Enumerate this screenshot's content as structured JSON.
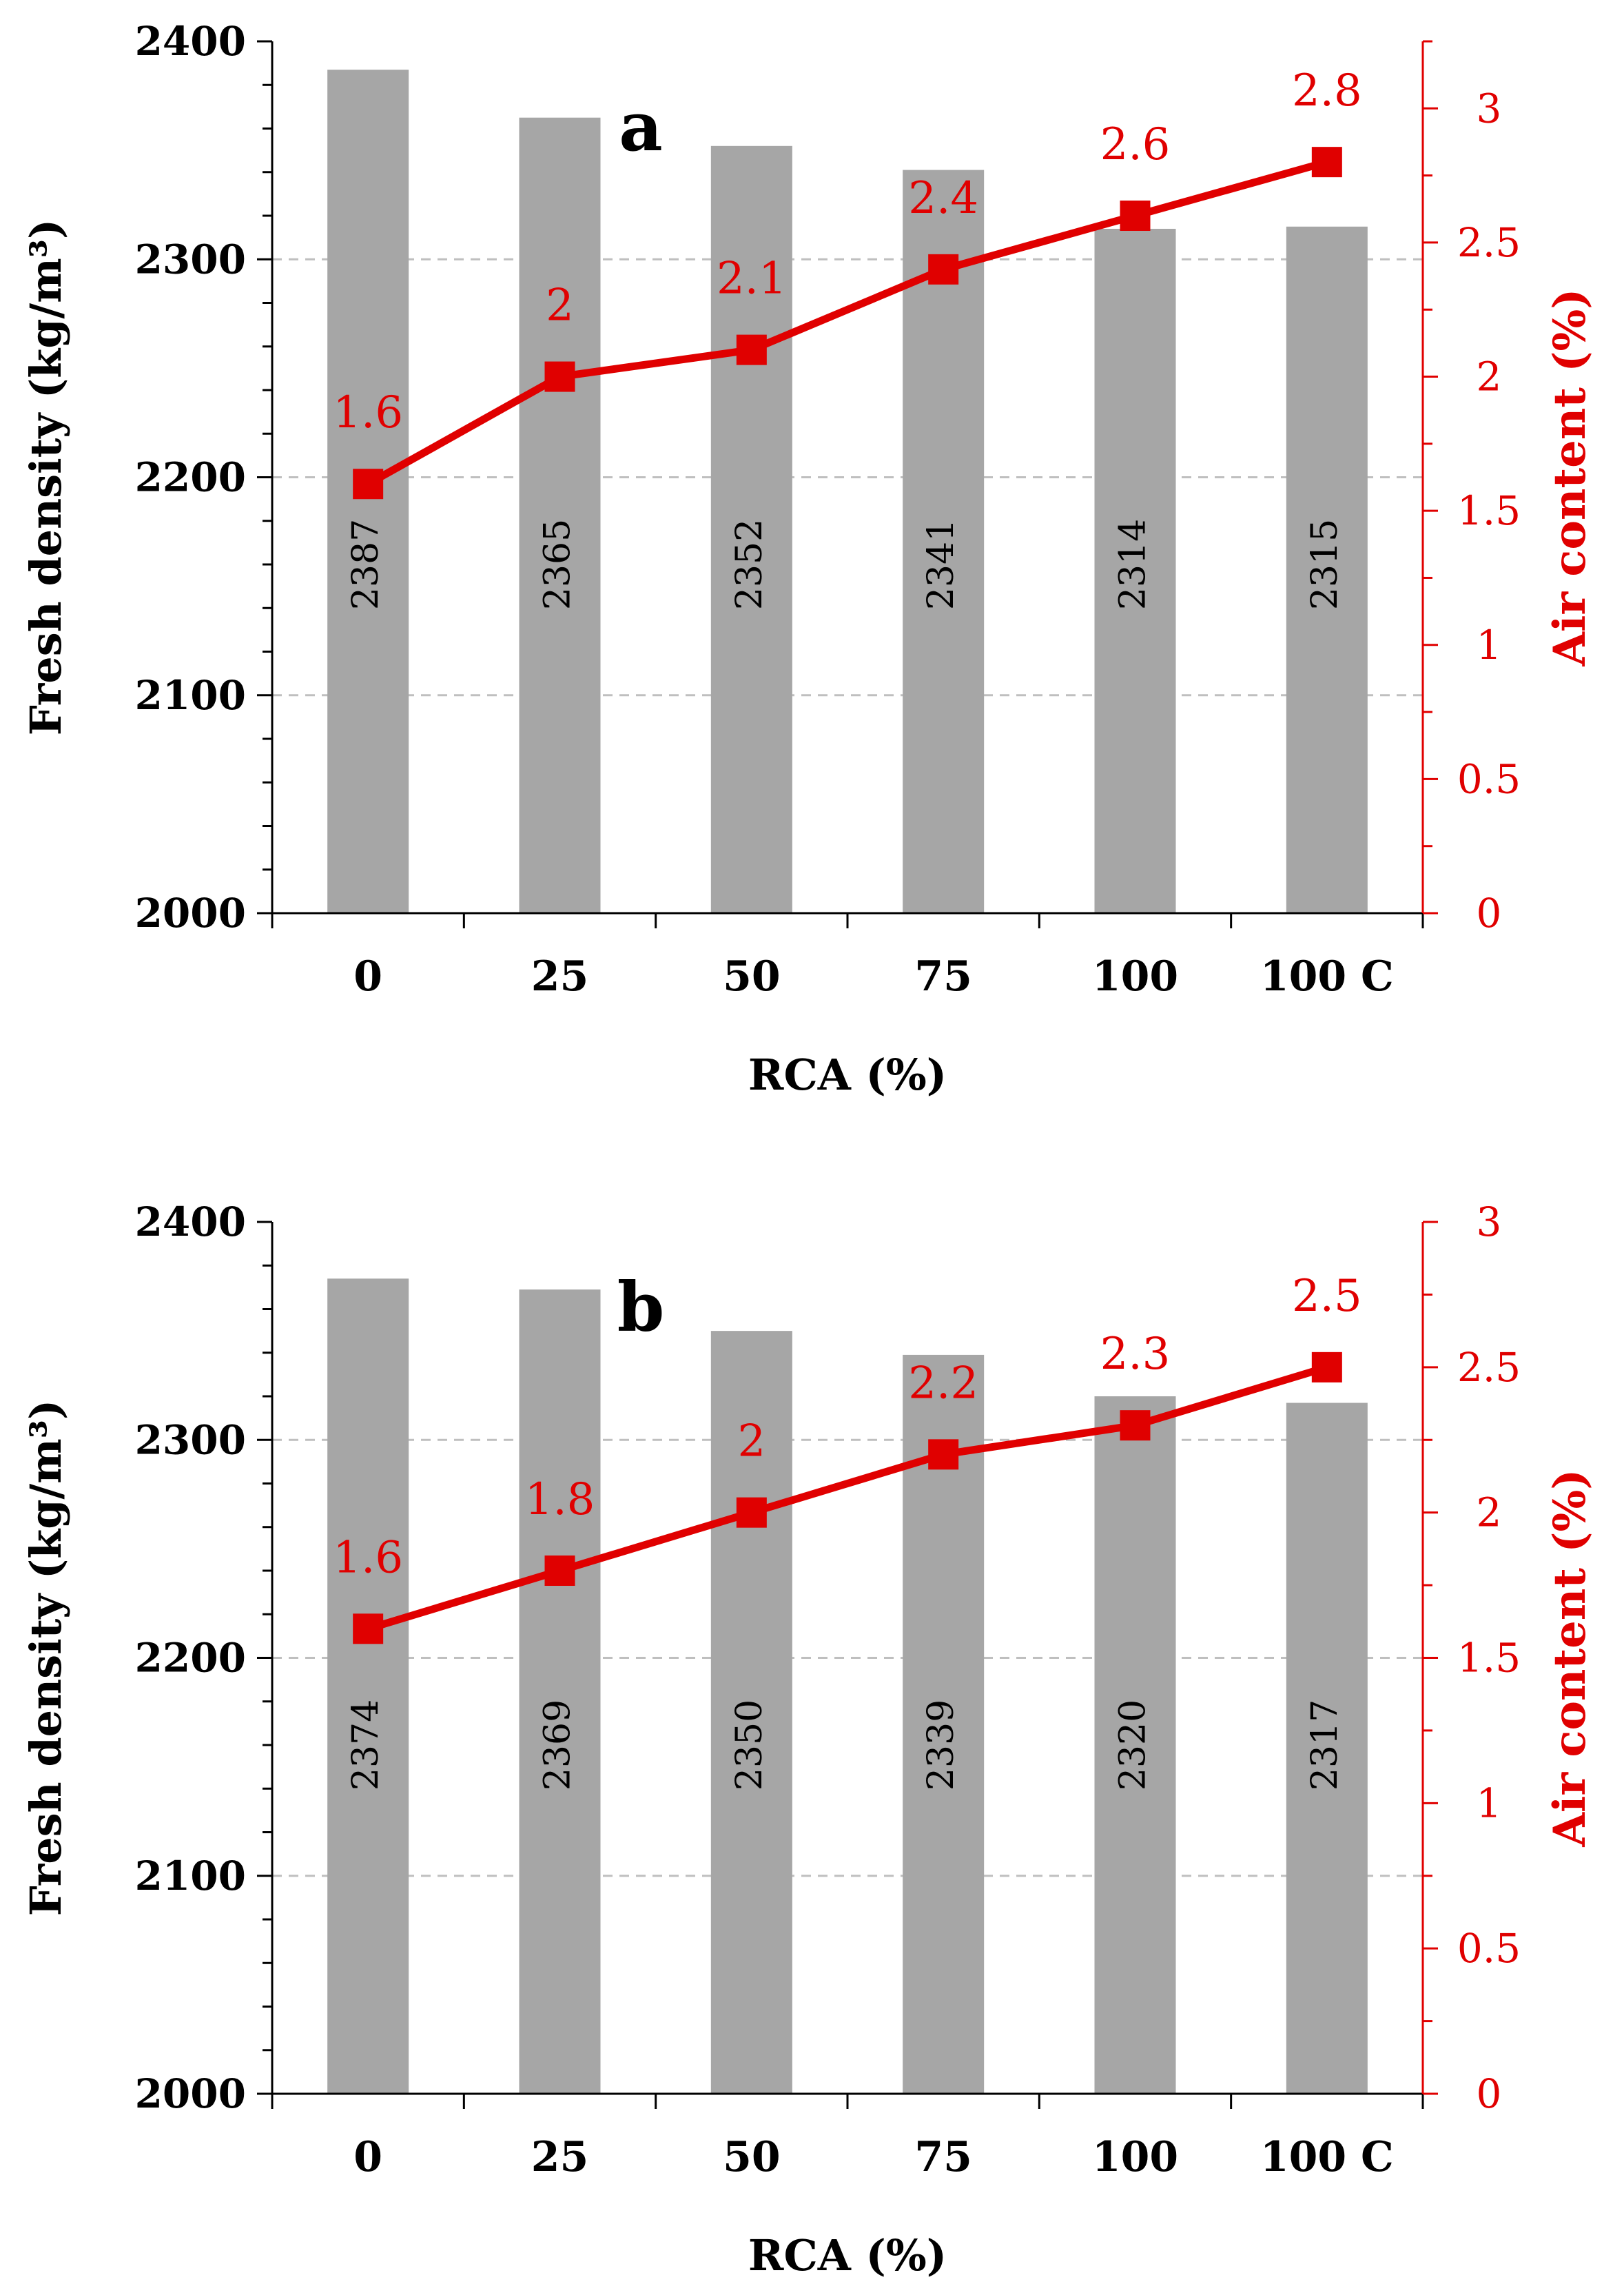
{
  "colors": {
    "bar": "#a6a6a6",
    "line": "#e00000",
    "text": "#000000",
    "grid": "#bfbfbf"
  },
  "chart_data": [
    {
      "type": "bar+line",
      "panel_label": "a",
      "categories": [
        "0",
        "25",
        "50",
        "75",
        "100",
        "100 C"
      ],
      "xlabel": "RCA (%)",
      "ylabel": "Fresh density (kg/m³)",
      "y2label": "Air content (%)",
      "ylim": [
        2000,
        2400
      ],
      "yticks": [
        "2000",
        "2100",
        "2200",
        "2300",
        "2400"
      ],
      "y2lim": [
        0,
        3.25
      ],
      "y2ticks": [
        "0",
        "0.5",
        "1",
        "1.5",
        "2",
        "2.5",
        "3"
      ],
      "grid": true,
      "series": [
        {
          "name": "Fresh density",
          "kind": "bar",
          "values": [
            2387,
            2365,
            2352,
            2341,
            2314,
            2315
          ],
          "labels": [
            "2387",
            "2365",
            "2352",
            "2341",
            "2314",
            "2315"
          ]
        },
        {
          "name": "Air content",
          "kind": "line",
          "values": [
            1.6,
            2,
            2.1,
            2.4,
            2.6,
            2.8
          ],
          "labels": [
            "1.6",
            "2",
            "2.1",
            "2.4",
            "2.6",
            "2.8"
          ]
        }
      ]
    },
    {
      "type": "bar+line",
      "panel_label": "b",
      "categories": [
        "0",
        "25",
        "50",
        "75",
        "100",
        "100 C"
      ],
      "xlabel": "RCA (%)",
      "ylabel": "Fresh density (kg/m³)",
      "y2label": "Air content (%)",
      "ylim": [
        2000,
        2400
      ],
      "yticks": [
        "2000",
        "2100",
        "2200",
        "2300",
        "2400"
      ],
      "y2lim": [
        0,
        3
      ],
      "y2ticks": [
        "0",
        "0.5",
        "1",
        "1.5",
        "2",
        "2.5",
        "3"
      ],
      "grid": true,
      "series": [
        {
          "name": "Fresh density",
          "kind": "bar",
          "values": [
            2374,
            2369,
            2350,
            2339,
            2320,
            2317
          ],
          "labels": [
            "2374",
            "2369",
            "2350",
            "2339",
            "2320",
            "2317"
          ]
        },
        {
          "name": "Air content",
          "kind": "line",
          "values": [
            1.6,
            1.8,
            2,
            2.2,
            2.3,
            2.5
          ],
          "labels": [
            "1.6",
            "1.8",
            "2",
            "2.2",
            "2.3",
            "2.5"
          ]
        }
      ]
    }
  ]
}
